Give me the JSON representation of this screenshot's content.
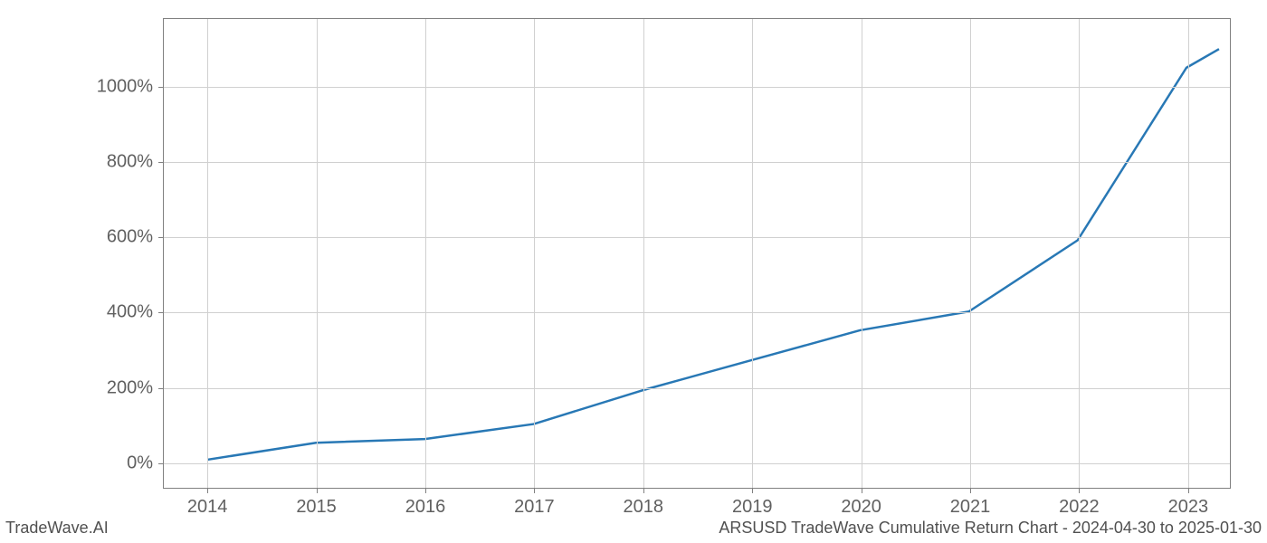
{
  "chart": {
    "type": "line",
    "background_color": "#ffffff",
    "grid_color": "#d0d0d0",
    "axis_color": "#808080",
    "line_color": "#2878b5",
    "line_width": 2.5,
    "tick_fontsize": 20,
    "tick_color": "#606060",
    "x_ticks": [
      "2014",
      "2015",
      "2016",
      "2017",
      "2018",
      "2019",
      "2020",
      "2021",
      "2022",
      "2023"
    ],
    "y_ticks": [
      "0%",
      "200%",
      "400%",
      "600%",
      "800%",
      "1000%"
    ],
    "xlim": [
      2013.6,
      2023.4
    ],
    "ylim": [
      -70,
      1180
    ],
    "x_values": [
      2014,
      2015,
      2016,
      2017,
      2018,
      2019,
      2020,
      2021,
      2022,
      2023,
      2023.3
    ],
    "y_values": [
      5,
      50,
      60,
      100,
      190,
      270,
      350,
      400,
      590,
      1050,
      1100
    ]
  },
  "footer": {
    "left": "TradeWave.AI",
    "right": "ARSUSD TradeWave Cumulative Return Chart - 2024-04-30 to 2025-01-30"
  }
}
